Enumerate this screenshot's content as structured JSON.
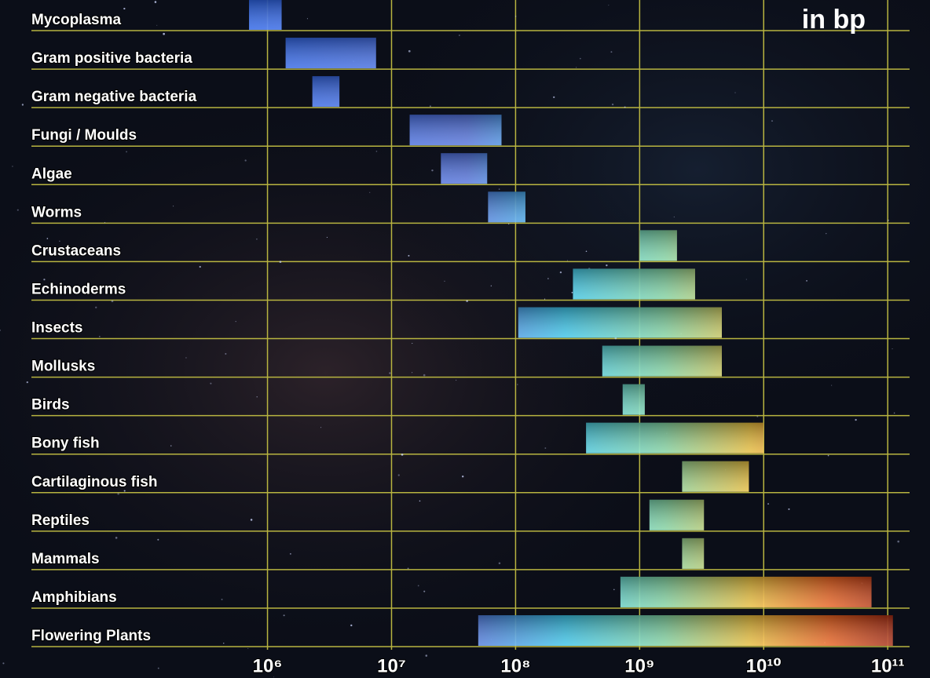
{
  "chart_data": {
    "type": "floating-bar",
    "title": "in bp",
    "x_scale": "log",
    "categories": [
      "Mycoplasma",
      "Gram positive bacteria",
      "Gram negative bacteria",
      "Fungi / Moulds",
      "Algae",
      "Worms",
      "Crustaceans",
      "Echinoderms",
      "Insects",
      "Mollusks",
      "Birds",
      "Bony fish",
      "Cartilaginous fish",
      "Reptiles",
      "Mammals",
      "Amphibians",
      "Flowering Plants"
    ],
    "starts": [
      710000,
      1400000,
      2300000,
      14000000,
      25000000,
      60000000,
      1000000000,
      290000000,
      105000000,
      500000000,
      730000000,
      370000000,
      2200000000,
      1200000000,
      2200000000,
      700000000,
      50000000
    ],
    "ends": [
      1300000,
      7500000,
      3800000,
      77000000,
      59000000,
      120000000,
      2000000000,
      2800000000,
      4600000000,
      4600000000,
      1100000000,
      10000000000,
      7600000000,
      3300000000,
      3300000000,
      74000000000,
      110000000000
    ],
    "xlim": [
      12500,
      150000000000
    ],
    "xticks": [
      {
        "value": 1000000,
        "label": "10⁶"
      },
      {
        "value": 10000000,
        "label": "10⁷"
      },
      {
        "value": 100000000,
        "label": "10⁸"
      },
      {
        "value": 1000000000,
        "label": "10⁹"
      },
      {
        "value": 10000000000,
        "label": "10¹⁰"
      },
      {
        "value": 100000000000,
        "label": "10¹¹"
      }
    ],
    "grid": true,
    "grid_color": "#b8b440"
  }
}
